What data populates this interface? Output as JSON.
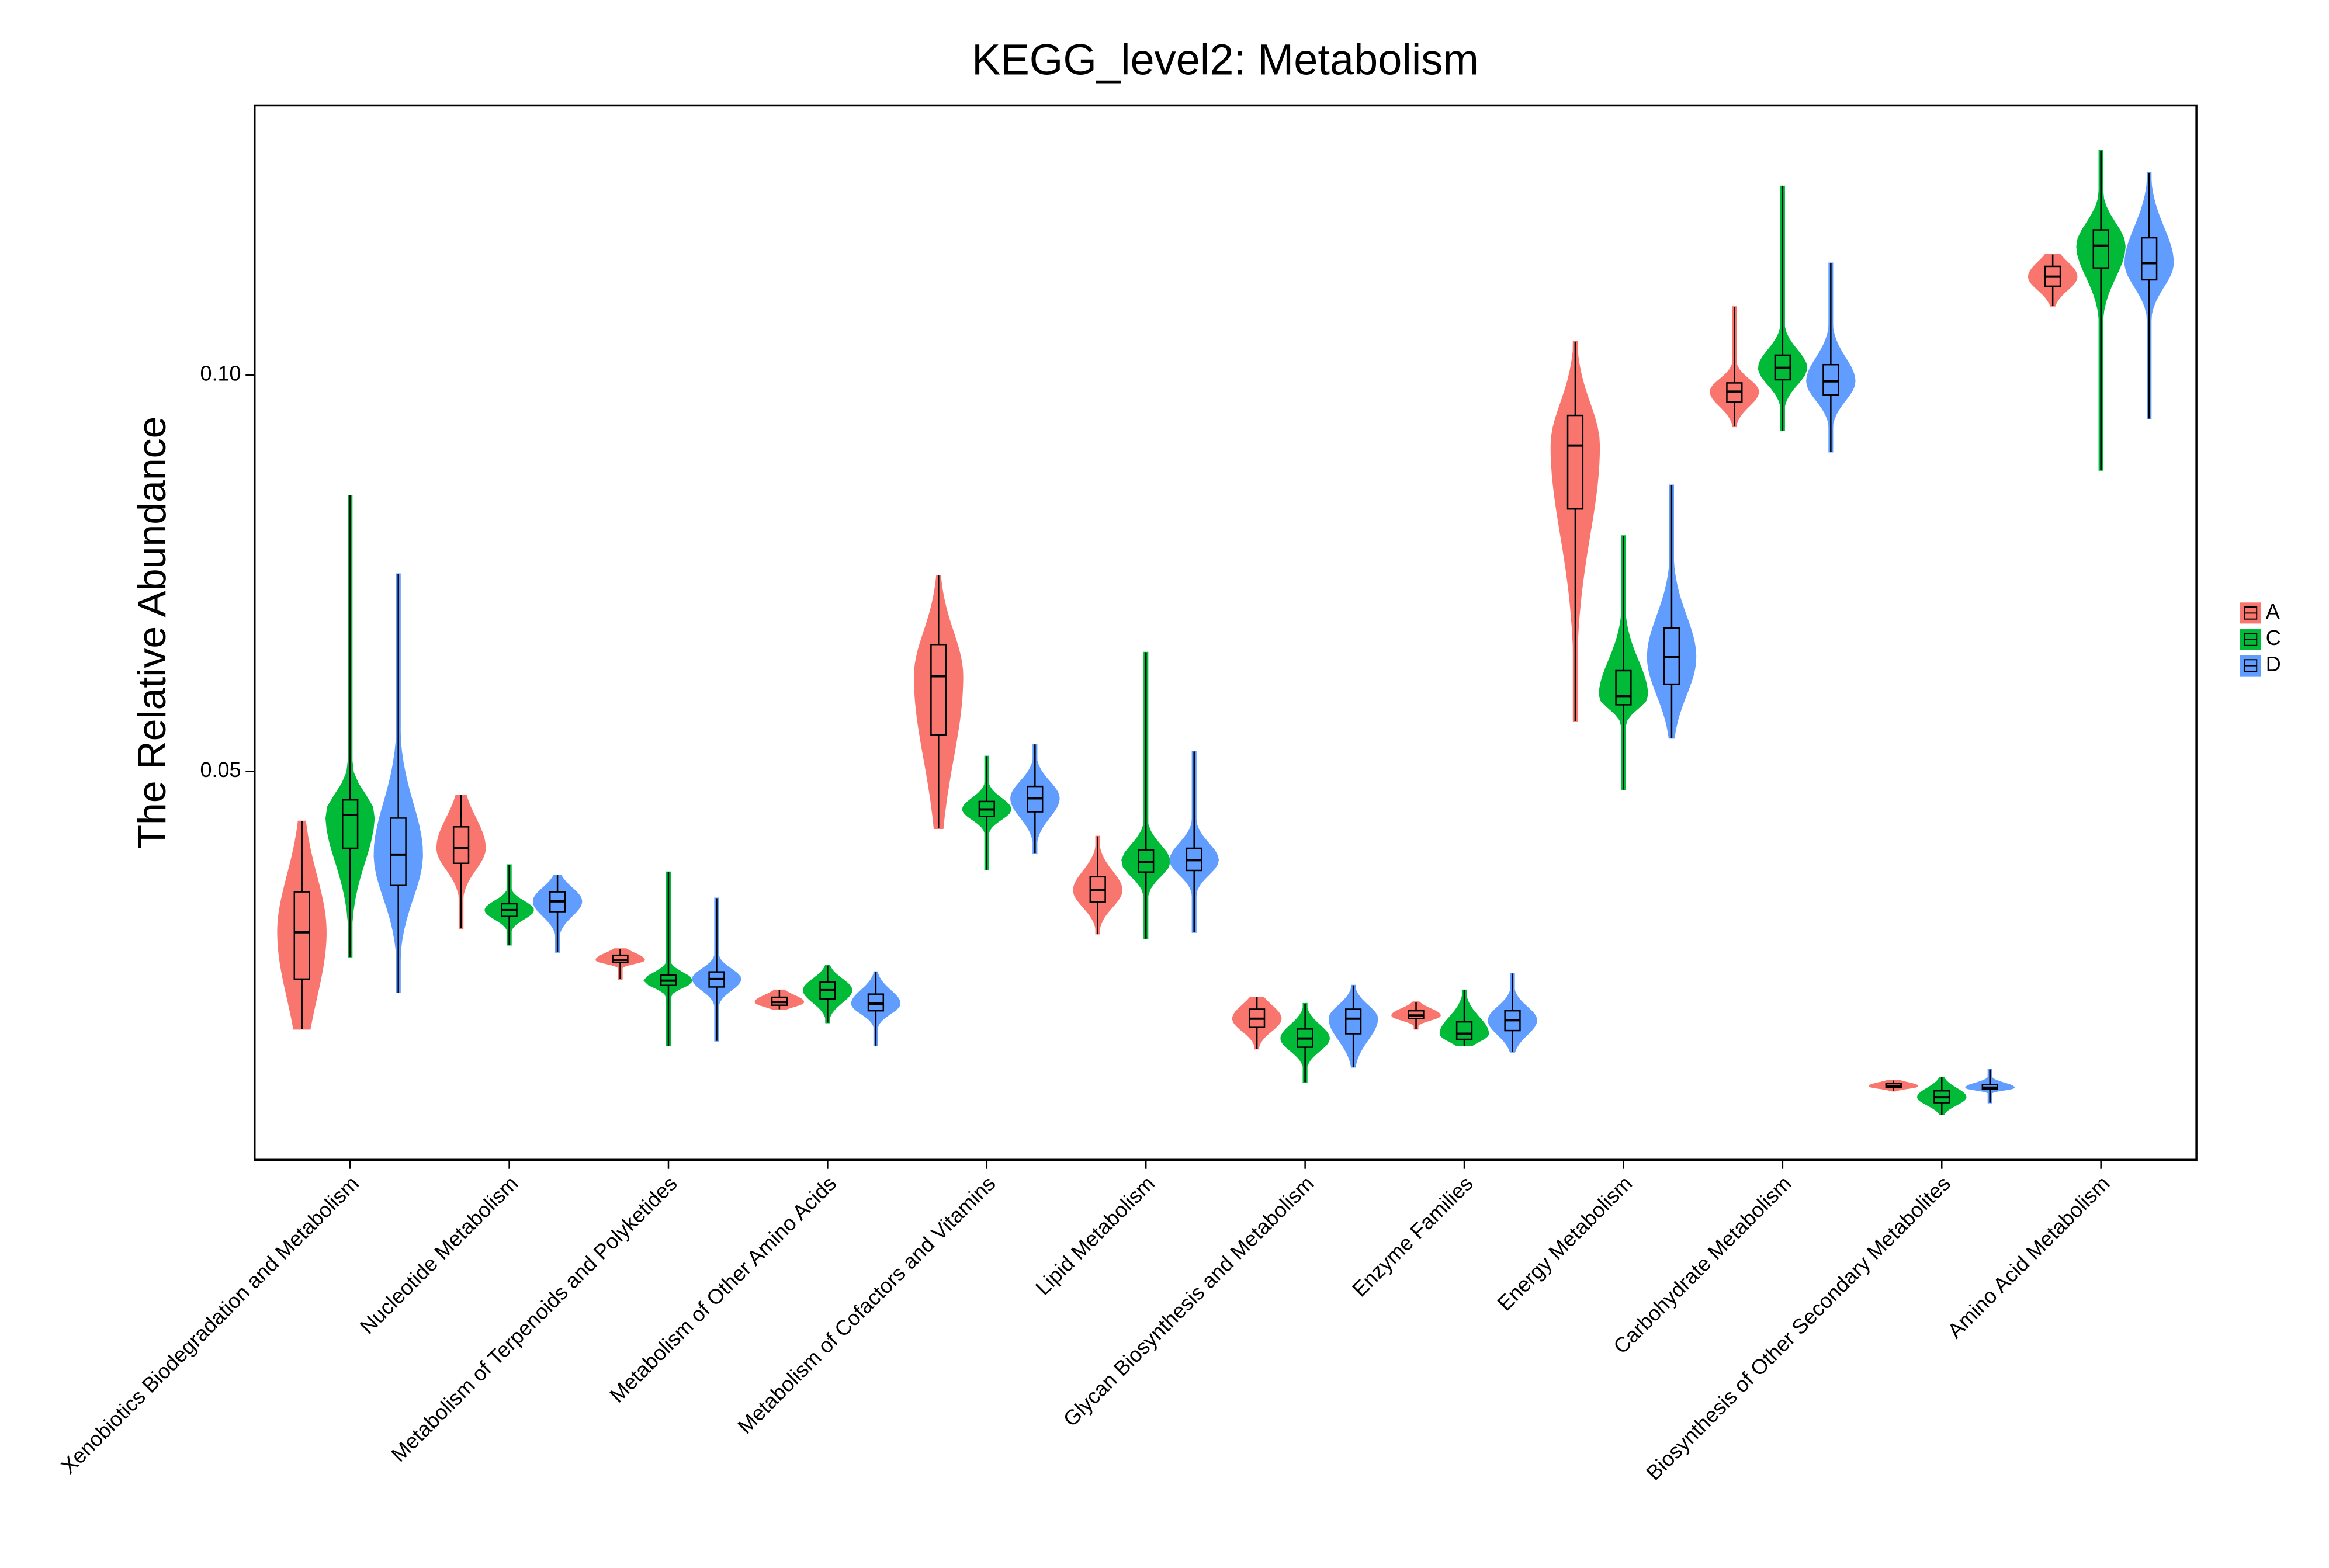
{
  "chart_data": {
    "type": "violin",
    "title": "KEGG_level2: Metabolism",
    "y_label": "The Relative Abundance",
    "categories": [
      "Xenobiotics Biodegradation and Metabolism",
      "Nucleotide Metabolism",
      "Metabolism of Terpenoids and Polyketides",
      "Metabolism of Other Amino Acids",
      "Metabolism of Cofactors and Vitamins",
      "Lipid Metabolism",
      "Glycan Biosynthesis and Metabolism",
      "Enzyme Families",
      "Energy Metabolism",
      "Carbohydrate Metabolism",
      "Biosynthesis of Other Secondary Metabolites",
      "Amino Acid Metabolism"
    ],
    "ylim": [
      0.001,
      0.134
    ],
    "yticks": [
      0.05,
      {
        "value": 0.1,
        "label": "0.10"
      }
    ],
    "legend": "right",
    "series": [
      {
        "name": "A",
        "color": "#f8766d",
        "min": [
          0.0175,
          0.0302,
          0.0238,
          0.02,
          0.0428,
          0.0295,
          0.015,
          0.0175,
          0.0563,
          0.0935,
          0.0097,
          0.1087
        ],
        "q1": [
          0.0238,
          0.0384,
          0.0259,
          0.0205,
          0.0546,
          0.0335,
          0.0177,
          0.0188,
          0.0831,
          0.0966,
          0.0101,
          0.1112
        ],
        "median": [
          0.0297,
          0.0403,
          0.0262,
          0.0209,
          0.062,
          0.035,
          0.0188,
          0.0192,
          0.0911,
          0.0979,
          0.0103,
          0.1124
        ],
        "q3": [
          0.0348,
          0.043,
          0.0268,
          0.0215,
          0.066,
          0.0367,
          0.02,
          0.0198,
          0.0949,
          0.099,
          0.0106,
          0.1137
        ],
        "max": [
          0.0437,
          0.047,
          0.0276,
          0.0224,
          0.0747,
          0.0418,
          0.0215,
          0.0209,
          0.1042,
          0.1086,
          0.011,
          0.1152
        ]
      },
      {
        "name": "C",
        "color": "#00ba38",
        "min": [
          0.0266,
          0.0281,
          0.0154,
          0.0183,
          0.0376,
          0.0289,
          0.0108,
          0.0154,
          0.0477,
          0.093,
          0.0067,
          0.088
        ],
        "q1": [
          0.0403,
          0.0317,
          0.023,
          0.0213,
          0.0443,
          0.0373,
          0.0152,
          0.0162,
          0.0584,
          0.0994,
          0.0082,
          0.1135
        ],
        "median": [
          0.0445,
          0.0325,
          0.0236,
          0.0224,
          0.0452,
          0.0386,
          0.0163,
          0.0169,
          0.0595,
          0.1009,
          0.0089,
          0.1163
        ],
        "q3": [
          0.0464,
          0.0333,
          0.0243,
          0.0234,
          0.0462,
          0.0401,
          0.0175,
          0.0184,
          0.0627,
          0.1025,
          0.0097,
          0.1183
        ],
        "max": [
          0.0848,
          0.0382,
          0.0373,
          0.0255,
          0.0519,
          0.065,
          0.0207,
          0.0224,
          0.0797,
          0.1238,
          0.0114,
          0.1283
        ]
      },
      {
        "name": "D",
        "color": "#619cff",
        "min": [
          0.0221,
          0.0272,
          0.016,
          0.0154,
          0.0397,
          0.0297,
          0.0127,
          0.0146,
          0.0542,
          0.0903,
          0.0082,
          0.0945
        ],
        "q1": [
          0.0356,
          0.0323,
          0.0228,
          0.0198,
          0.0449,
          0.0375,
          0.0169,
          0.0173,
          0.061,
          0.0975,
          0.0099,
          0.112
        ],
        "median": [
          0.0395,
          0.0336,
          0.0238,
          0.0207,
          0.0466,
          0.0388,
          0.0188,
          0.0186,
          0.0644,
          0.0992,
          0.0101,
          0.1141
        ],
        "q3": [
          0.0441,
          0.0348,
          0.0247,
          0.0219,
          0.0481,
          0.0403,
          0.02,
          0.0198,
          0.0681,
          0.1013,
          0.0105,
          0.1173
        ],
        "max": [
          0.0749,
          0.0369,
          0.034,
          0.0247,
          0.0534,
          0.0525,
          0.023,
          0.0245,
          0.0861,
          0.1141,
          0.0124,
          0.1255
        ]
      }
    ]
  }
}
